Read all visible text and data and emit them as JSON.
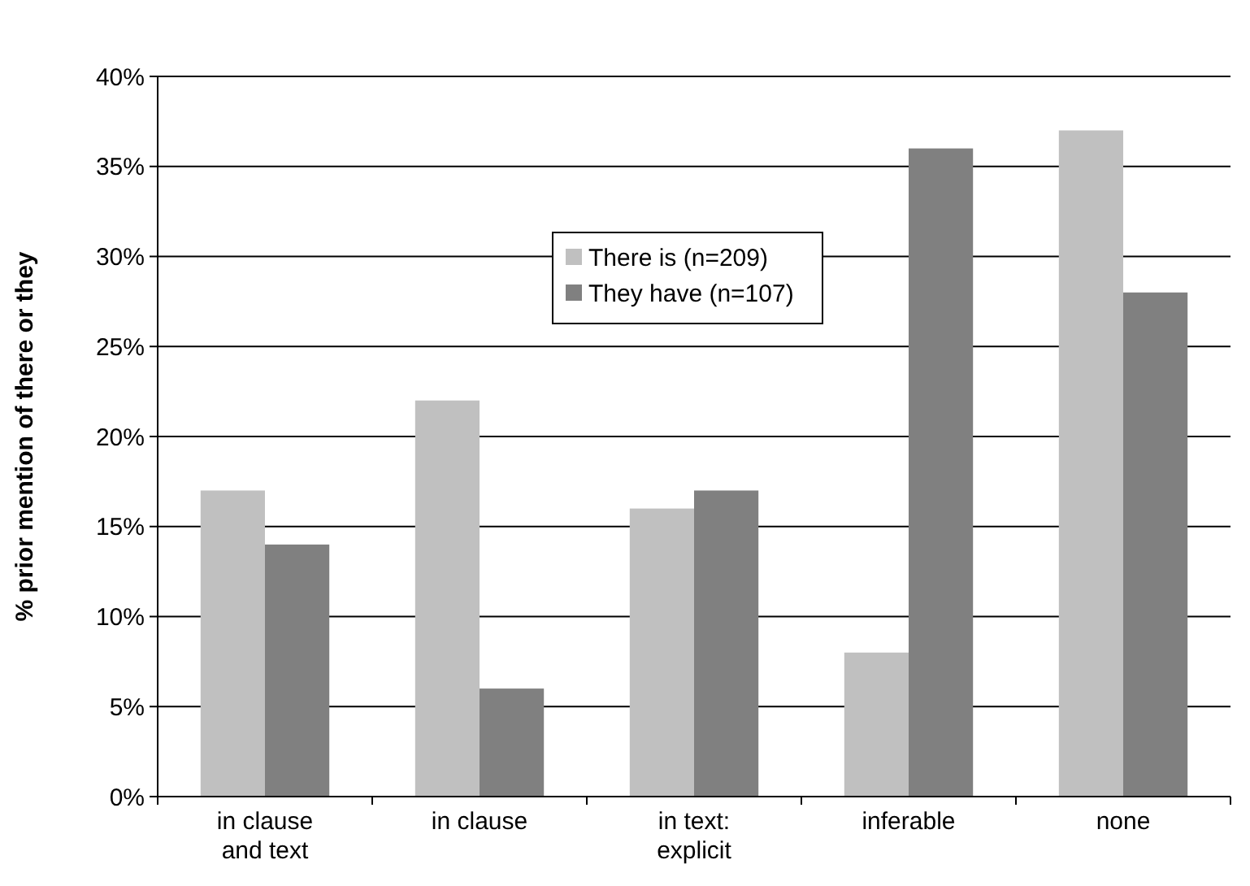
{
  "chart_data": {
    "type": "bar",
    "ylabel": "% prior mention of there or they",
    "categories": [
      "in clause\nand text",
      "in clause",
      "in text:\nexplicit",
      "inferable",
      "none"
    ],
    "series": [
      {
        "name": "There is (n=209)",
        "color": "#c0c0c0",
        "values": [
          17,
          22,
          16,
          8,
          37
        ]
      },
      {
        "name": "They have (n=107)",
        "color": "#808080",
        "values": [
          14,
          6,
          17,
          36,
          28
        ]
      }
    ],
    "ylim": [
      0,
      40
    ],
    "yticks": [
      {
        "value": 0,
        "label": "0%"
      },
      {
        "value": 5,
        "label": "5%"
      },
      {
        "value": 10,
        "label": "10%"
      },
      {
        "value": 15,
        "label": "15%"
      },
      {
        "value": 20,
        "label": "20%"
      },
      {
        "value": 25,
        "label": "25%"
      },
      {
        "value": 30,
        "label": "30%"
      },
      {
        "value": 35,
        "label": "35%"
      },
      {
        "value": 40,
        "label": "40%"
      }
    ],
    "grid": "y",
    "legend": "top"
  }
}
